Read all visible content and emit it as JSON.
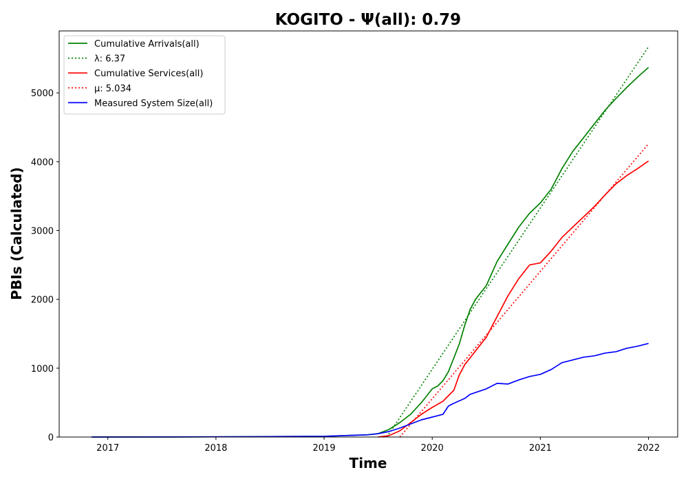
{
  "chart_data": {
    "type": "line",
    "title": "KOGITO -  Ψ(all): 0.79",
    "xlabel": "Time",
    "ylabel": "PBIs (Calculated)",
    "xlim": [
      2016.55,
      2022.27
    ],
    "ylim": [
      0,
      5900
    ],
    "x_ticks": [
      2017,
      2018,
      2019,
      2020,
      2021,
      2022
    ],
    "y_ticks": [
      0,
      1000,
      2000,
      3000,
      4000,
      5000
    ],
    "grid": false,
    "legend_position": "top-left",
    "series": [
      {
        "name": "Cumulative Arrivals(all)",
        "style": "solid",
        "color": "#008000",
        "points": [
          [
            2016.85,
            0
          ],
          [
            2017.5,
            1
          ],
          [
            2018.0,
            3
          ],
          [
            2018.5,
            6
          ],
          [
            2019.0,
            10
          ],
          [
            2019.2,
            22
          ],
          [
            2019.4,
            32
          ],
          [
            2019.5,
            50
          ],
          [
            2019.6,
            110
          ],
          [
            2019.7,
            210
          ],
          [
            2019.8,
            330
          ],
          [
            2019.9,
            500
          ],
          [
            2019.95,
            600
          ],
          [
            2020.0,
            700
          ],
          [
            2020.05,
            740
          ],
          [
            2020.1,
            820
          ],
          [
            2020.15,
            950
          ],
          [
            2020.2,
            1150
          ],
          [
            2020.25,
            1350
          ],
          [
            2020.3,
            1620
          ],
          [
            2020.35,
            1850
          ],
          [
            2020.4,
            2000
          ],
          [
            2020.5,
            2200
          ],
          [
            2020.6,
            2550
          ],
          [
            2020.7,
            2800
          ],
          [
            2020.8,
            3050
          ],
          [
            2020.9,
            3250
          ],
          [
            2021.0,
            3400
          ],
          [
            2021.1,
            3600
          ],
          [
            2021.2,
            3900
          ],
          [
            2021.3,
            4150
          ],
          [
            2021.4,
            4350
          ],
          [
            2021.5,
            4550
          ],
          [
            2021.6,
            4750
          ],
          [
            2021.7,
            4920
          ],
          [
            2021.8,
            5080
          ],
          [
            2021.9,
            5230
          ],
          [
            2022.0,
            5370
          ]
        ]
      },
      {
        "name": "λ: 6.37",
        "style": "dotted",
        "color": "#008000",
        "points": [
          [
            2019.58,
            0
          ],
          [
            2022.0,
            5670
          ]
        ]
      },
      {
        "name": "Cumulative Services(all)",
        "style": "solid",
        "color": "#ff0000",
        "points": [
          [
            2019.5,
            0
          ],
          [
            2019.6,
            20
          ],
          [
            2019.7,
            90
          ],
          [
            2019.8,
            210
          ],
          [
            2019.9,
            330
          ],
          [
            2020.0,
            430
          ],
          [
            2020.1,
            520
          ],
          [
            2020.2,
            680
          ],
          [
            2020.25,
            900
          ],
          [
            2020.3,
            1050
          ],
          [
            2020.4,
            1250
          ],
          [
            2020.5,
            1450
          ],
          [
            2020.6,
            1750
          ],
          [
            2020.7,
            2050
          ],
          [
            2020.8,
            2300
          ],
          [
            2020.9,
            2500
          ],
          [
            2021.0,
            2530
          ],
          [
            2021.1,
            2700
          ],
          [
            2021.2,
            2900
          ],
          [
            2021.3,
            3050
          ],
          [
            2021.4,
            3200
          ],
          [
            2021.5,
            3350
          ],
          [
            2021.6,
            3520
          ],
          [
            2021.7,
            3680
          ],
          [
            2021.8,
            3800
          ],
          [
            2021.9,
            3900
          ],
          [
            2022.0,
            4010
          ]
        ]
      },
      {
        "name": "μ: 5.034",
        "style": "dotted",
        "color": "#ff0000",
        "points": [
          [
            2019.7,
            0
          ],
          [
            2022.0,
            4260
          ]
        ]
      },
      {
        "name": "Measured System Size(all)",
        "style": "solid",
        "color": "#0000ff",
        "points": [
          [
            2016.85,
            0
          ],
          [
            2017.5,
            1
          ],
          [
            2018.0,
            3
          ],
          [
            2018.5,
            6
          ],
          [
            2019.0,
            10
          ],
          [
            2019.2,
            22
          ],
          [
            2019.4,
            32
          ],
          [
            2019.5,
            48
          ],
          [
            2019.6,
            80
          ],
          [
            2019.7,
            130
          ],
          [
            2019.8,
            190
          ],
          [
            2019.9,
            250
          ],
          [
            2020.0,
            290
          ],
          [
            2020.1,
            330
          ],
          [
            2020.15,
            450
          ],
          [
            2020.2,
            490
          ],
          [
            2020.3,
            560
          ],
          [
            2020.35,
            620
          ],
          [
            2020.5,
            700
          ],
          [
            2020.6,
            780
          ],
          [
            2020.7,
            770
          ],
          [
            2020.8,
            830
          ],
          [
            2020.9,
            880
          ],
          [
            2021.0,
            910
          ],
          [
            2021.1,
            980
          ],
          [
            2021.2,
            1080
          ],
          [
            2021.3,
            1120
          ],
          [
            2021.4,
            1160
          ],
          [
            2021.5,
            1180
          ],
          [
            2021.6,
            1220
          ],
          [
            2021.7,
            1240
          ],
          [
            2021.8,
            1290
          ],
          [
            2021.9,
            1320
          ],
          [
            2022.0,
            1360
          ]
        ]
      }
    ]
  }
}
